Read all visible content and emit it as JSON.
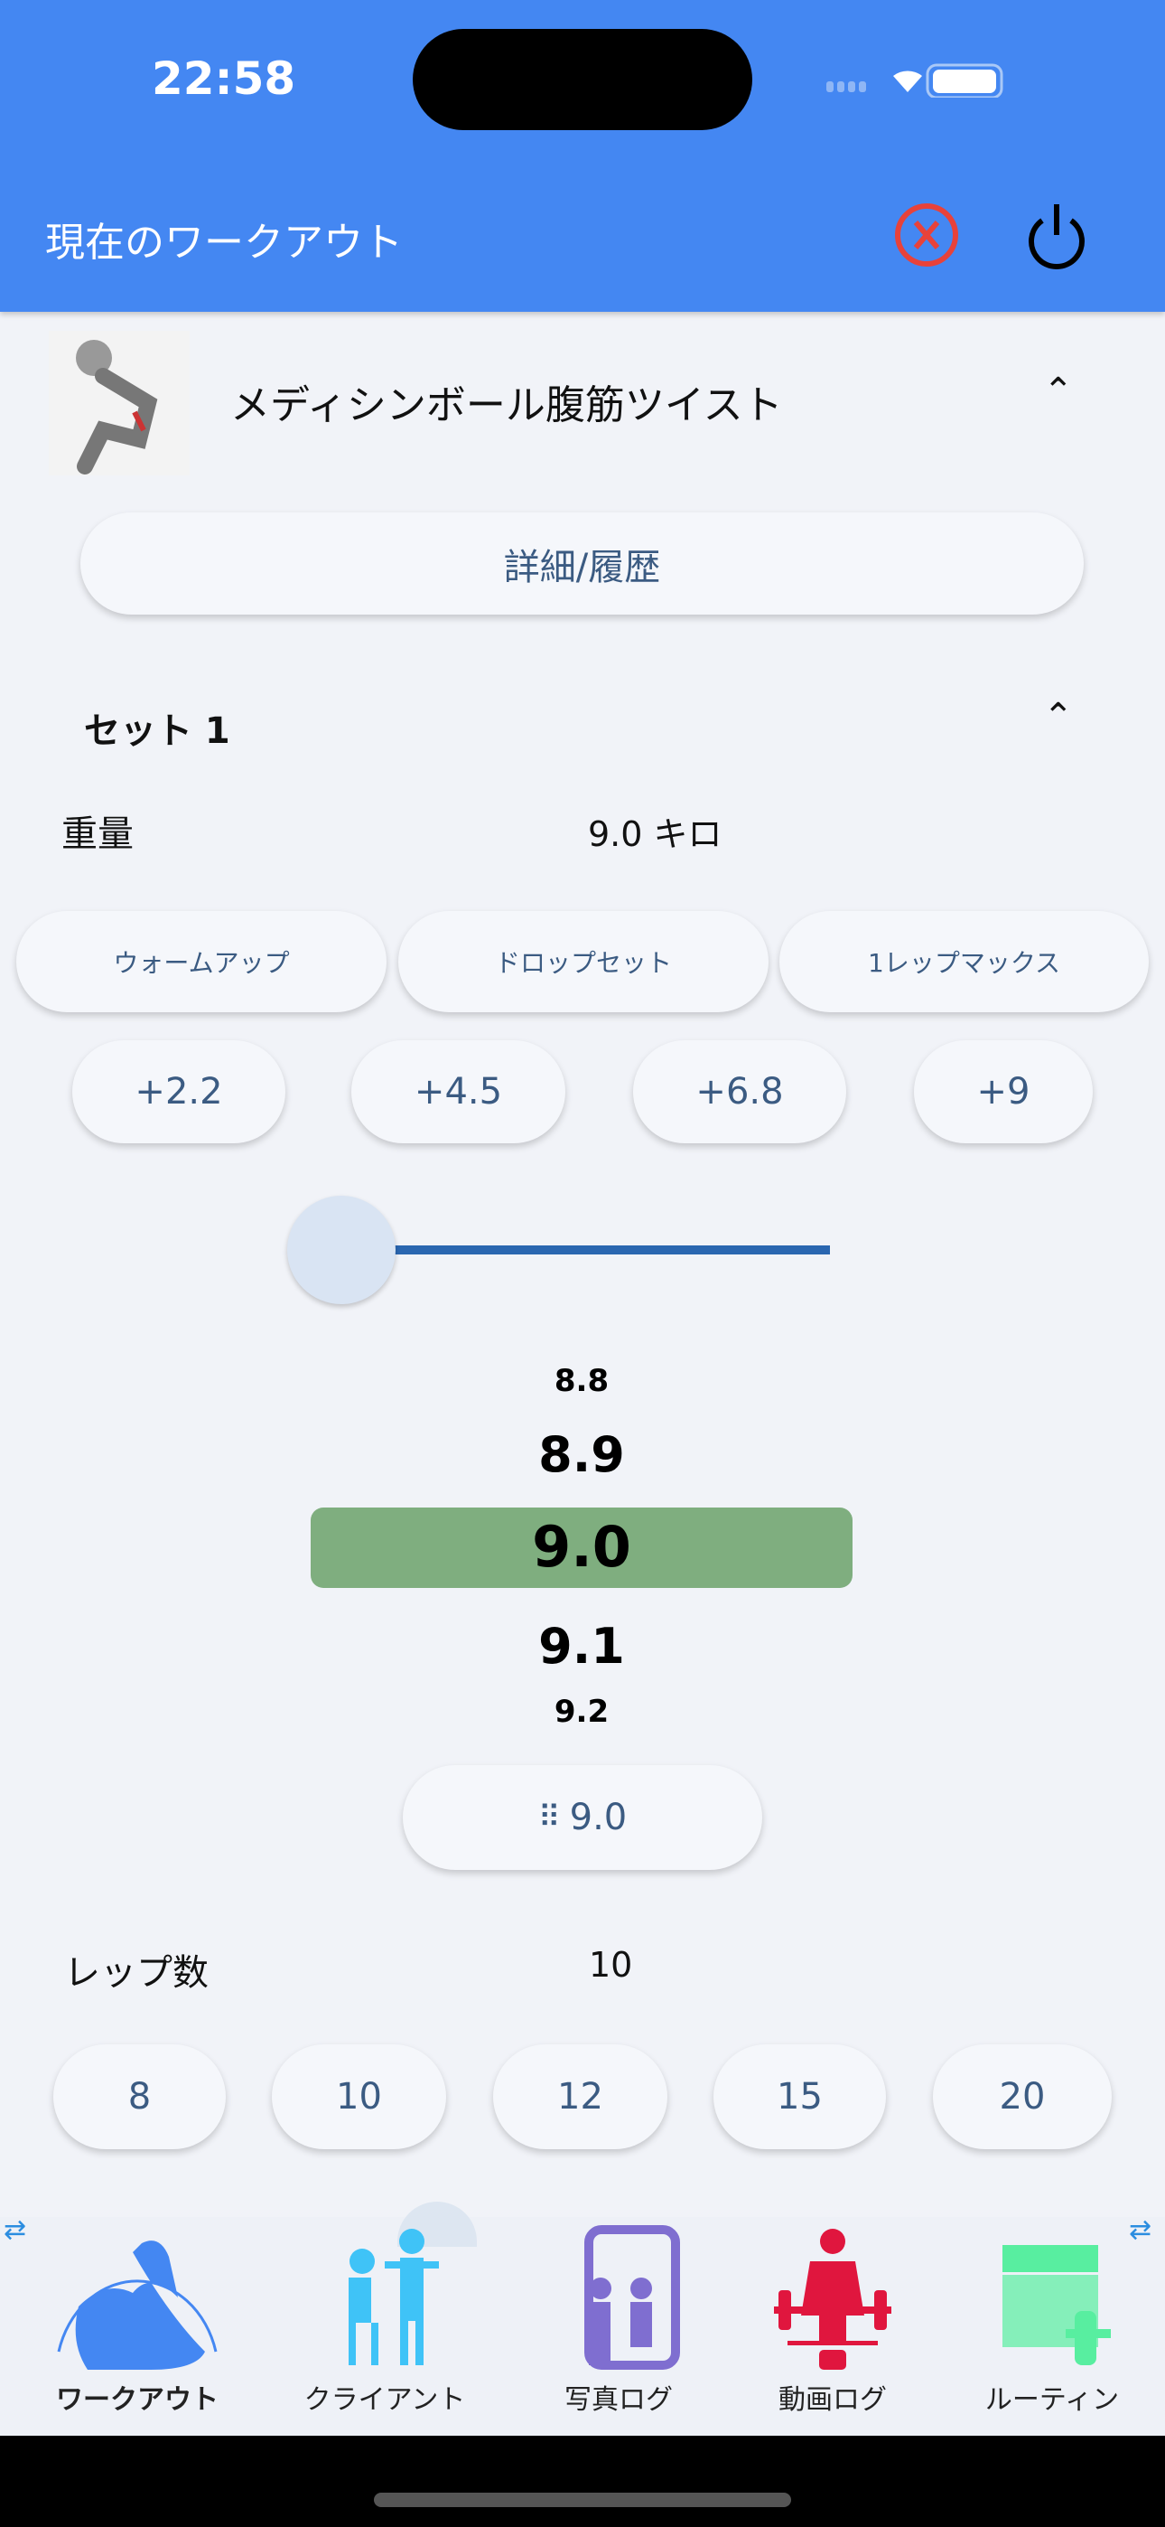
{
  "status_bar": {
    "time": "22:58"
  },
  "header": {
    "title": "現在のワークアウト",
    "close_icon": "circle-x-icon",
    "power_icon": "power-icon",
    "close_color": "#e8423a"
  },
  "exercise": {
    "name": "メディシンボール腹筋ツイスト",
    "details_label": "詳細/履歴"
  },
  "set": {
    "title": "セット 1",
    "weight_label": "重量",
    "weight_value": "9.0 キロ",
    "type_buttons": [
      "ウォームアップ",
      "ドロップセット",
      "1レップマックス"
    ],
    "increments": [
      "+2.2",
      "+4.5",
      "+6.8",
      "+9"
    ],
    "slider_value": 0,
    "picker": [
      "8.8",
      "8.9",
      "9.0",
      "9.1",
      "9.2"
    ],
    "keypad_value": "9.0",
    "reps_label": "レップ数",
    "reps_value": "10",
    "rep_options": [
      "8",
      "10",
      "12",
      "15",
      "20"
    ]
  },
  "bottom_nav": {
    "items": [
      {
        "label": "ワークアウト",
        "icon": "bicep-icon",
        "color": "#4487f2",
        "active": true
      },
      {
        "label": "クライアント",
        "icon": "trainer-client-icon",
        "color": "#3fc3f7"
      },
      {
        "label": "写真ログ",
        "icon": "mirror-photo-icon",
        "color": "#7f6ed0"
      },
      {
        "label": "動画ログ",
        "icon": "weightlifter-video-icon",
        "color": "#e0163e"
      },
      {
        "label": "ルーティン",
        "icon": "calendar-dumbbell-icon",
        "color": "#58eea0"
      }
    ]
  }
}
